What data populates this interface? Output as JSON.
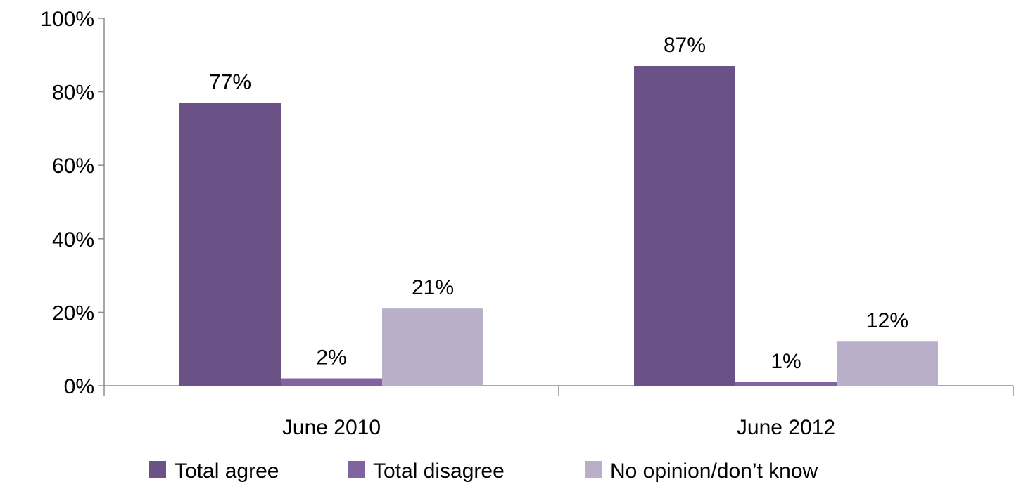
{
  "chart_data": {
    "type": "bar",
    "categories": [
      "June 2010",
      "June 2012"
    ],
    "series": [
      {
        "name": "Total agree",
        "values": [
          77,
          87
        ],
        "labels": [
          "77%",
          "87%"
        ],
        "color": "#6a5286"
      },
      {
        "name": "Total disagree",
        "values": [
          2,
          1
        ],
        "labels": [
          "2%",
          "1%"
        ],
        "color": "#8064a2"
      },
      {
        "name": "No opinion/don’t know",
        "values": [
          21,
          12
        ],
        "labels": [
          "21%",
          "12%"
        ],
        "color": "#b9afc9"
      }
    ],
    "ylim": [
      0,
      100
    ],
    "yticks": [
      "0%",
      "20%",
      "40%",
      "60%",
      "80%",
      "100%"
    ],
    "grid": false,
    "legend_position": "bottom"
  }
}
